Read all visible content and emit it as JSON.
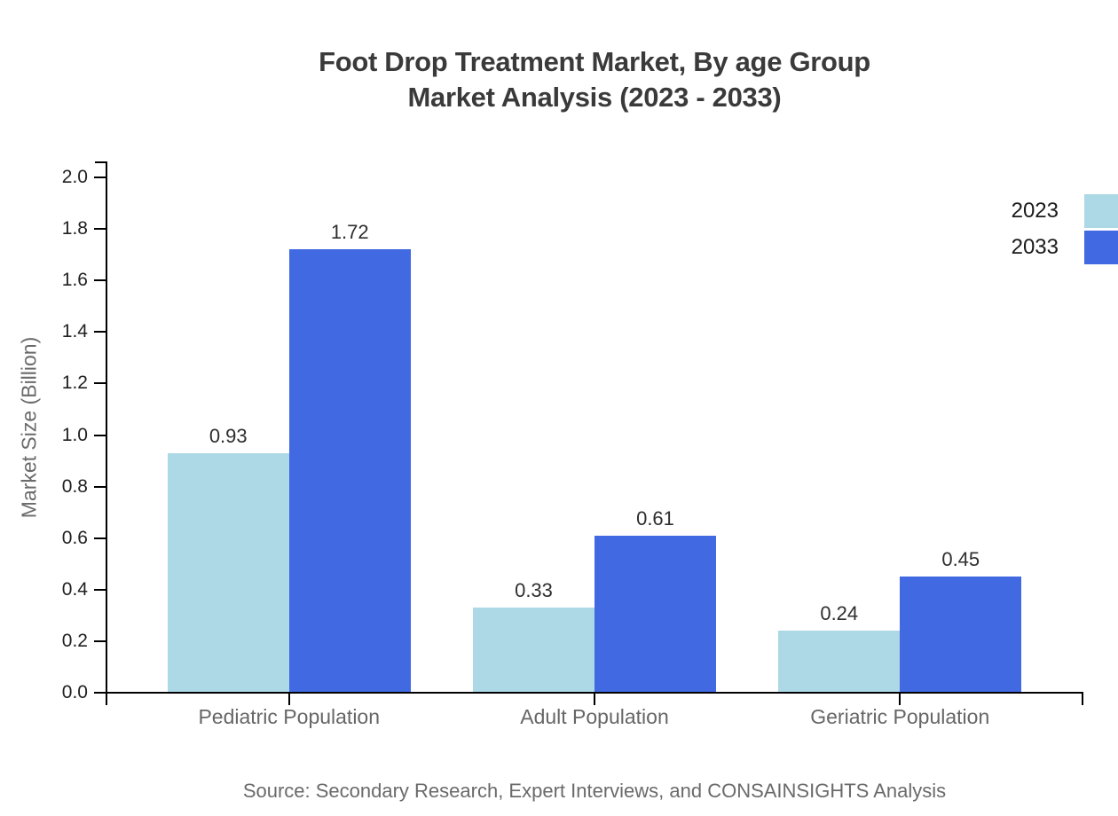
{
  "title": {
    "line1": "Foot Drop Treatment Market, By age Group",
    "line2": "Market Analysis (2023 - 2033)"
  },
  "chart_data": {
    "type": "bar",
    "title": "Foot Drop Treatment Market, By age Group Market Analysis (2023 - 2033)",
    "categories": [
      "Pediatric Population",
      "Adult Population",
      "Geriatric Population"
    ],
    "series": [
      {
        "name": "2023",
        "color": "#add8e6",
        "values": [
          0.93,
          0.33,
          0.24
        ]
      },
      {
        "name": "2033",
        "color": "#4169e1",
        "values": [
          1.72,
          0.61,
          0.45
        ]
      }
    ],
    "xlabel": "",
    "ylabel": "Market Size (Billion)",
    "ylim": [
      0.0,
      2.0
    ],
    "ytick_step": 0.2,
    "grid": false,
    "legend_position": "top-right",
    "value_labels": true
  },
  "source_note": "Source: Secondary Research, Expert Interviews, and CONSAINSIGHTS Analysis",
  "colors": {
    "series_2023": "#add8e6",
    "series_2033": "#4169e1",
    "axis": "#000000",
    "tick_label": "#212121",
    "category_label": "#666666",
    "title": "#3a3a3a",
    "muted_text": "#6a6a6a",
    "background": "#ffffff"
  }
}
